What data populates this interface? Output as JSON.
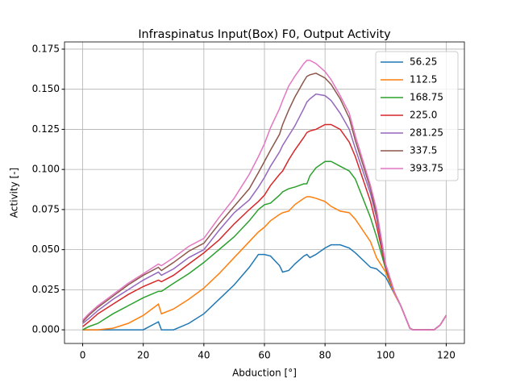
{
  "chart_data": {
    "type": "line",
    "title": "Infraspinatus Input(Box) F0, Output Activity",
    "x_label": "Abduction [°]",
    "y_label": "Activity [-]",
    "x": [
      0,
      2,
      5,
      10,
      15,
      20,
      25,
      26,
      30,
      35,
      40,
      45,
      50,
      55,
      58,
      60,
      62,
      65,
      66,
      68,
      70,
      73,
      74,
      75,
      77,
      80,
      82,
      85,
      88,
      90,
      95,
      97,
      100,
      103,
      105,
      108,
      109,
      112,
      116,
      118,
      120
    ],
    "series": [
      {
        "name": "56.25",
        "color": "#1f77b4",
        "values": [
          0,
          0,
          0,
          0,
          0,
          0,
          0.005,
          0,
          0,
          0.004,
          0.01,
          0.019,
          0.028,
          0.039,
          0.047,
          0.047,
          0.046,
          0.04,
          0.036,
          0.037,
          0.041,
          0.046,
          0.047,
          0.045,
          0.047,
          0.051,
          0.053,
          0.053,
          0.051,
          0.048,
          0.039,
          0.038,
          0.033,
          0.022,
          0.015,
          0.001,
          0,
          0,
          0,
          0.003,
          0.009
        ]
      },
      {
        "name": "112.5",
        "color": "#ff7f0e",
        "values": [
          0,
          0,
          0,
          0.001,
          0.004,
          0.009,
          0.016,
          0.01,
          0.013,
          0.019,
          0.026,
          0.035,
          0.045,
          0.055,
          0.061,
          0.064,
          0.068,
          0.072,
          0.073,
          0.074,
          0.078,
          0.082,
          0.083,
          0.083,
          0.082,
          0.08,
          0.077,
          0.074,
          0.073,
          0.069,
          0.055,
          0.045,
          0.036,
          0.022,
          0.015,
          0.001,
          0,
          0,
          0,
          0.003,
          0.009
        ]
      },
      {
        "name": "168.75",
        "color": "#2ca02c",
        "values": [
          0,
          0.002,
          0.004,
          0.01,
          0.015,
          0.02,
          0.024,
          0.024,
          0.029,
          0.035,
          0.042,
          0.05,
          0.058,
          0.068,
          0.075,
          0.078,
          0.079,
          0.084,
          0.086,
          0.088,
          0.089,
          0.091,
          0.091,
          0.096,
          0.101,
          0.105,
          0.105,
          0.102,
          0.099,
          0.094,
          0.07,
          0.058,
          0.038,
          0.023,
          0.015,
          0.001,
          0,
          0,
          0,
          0.003,
          0.009
        ]
      },
      {
        "name": "225.0",
        "color": "#d62728",
        "values": [
          0.002,
          0.005,
          0.01,
          0.016,
          0.022,
          0.027,
          0.031,
          0.03,
          0.034,
          0.041,
          0.048,
          0.056,
          0.066,
          0.075,
          0.08,
          0.084,
          0.09,
          0.097,
          0.099,
          0.106,
          0.112,
          0.12,
          0.123,
          0.124,
          0.125,
          0.128,
          0.128,
          0.125,
          0.117,
          0.108,
          0.08,
          0.065,
          0.039,
          0.023,
          0.015,
          0.001,
          0,
          0,
          0,
          0.003,
          0.009
        ]
      },
      {
        "name": "281.25",
        "color": "#9467bd",
        "values": [
          0.004,
          0.007,
          0.012,
          0.019,
          0.025,
          0.031,
          0.036,
          0.034,
          0.038,
          0.045,
          0.05,
          0.062,
          0.073,
          0.081,
          0.089,
          0.095,
          0.102,
          0.111,
          0.115,
          0.121,
          0.127,
          0.138,
          0.142,
          0.144,
          0.147,
          0.146,
          0.143,
          0.135,
          0.125,
          0.113,
          0.085,
          0.07,
          0.04,
          0.023,
          0.015,
          0.001,
          0,
          0,
          0,
          0.003,
          0.009
        ]
      },
      {
        "name": "337.5",
        "color": "#8c564b",
        "values": [
          0.005,
          0.009,
          0.014,
          0.021,
          0.028,
          0.034,
          0.039,
          0.037,
          0.042,
          0.049,
          0.054,
          0.066,
          0.077,
          0.088,
          0.098,
          0.105,
          0.112,
          0.122,
          0.128,
          0.137,
          0.145,
          0.155,
          0.158,
          0.159,
          0.16,
          0.157,
          0.153,
          0.144,
          0.132,
          0.118,
          0.088,
          0.072,
          0.041,
          0.023,
          0.015,
          0.001,
          0,
          0,
          0,
          0.003,
          0.009
        ]
      },
      {
        "name": "393.75",
        "color": "#e377c2",
        "values": [
          0.006,
          0.01,
          0.015,
          0.022,
          0.029,
          0.035,
          0.041,
          0.04,
          0.045,
          0.052,
          0.057,
          0.07,
          0.082,
          0.097,
          0.108,
          0.116,
          0.126,
          0.138,
          0.143,
          0.152,
          0.158,
          0.166,
          0.168,
          0.168,
          0.166,
          0.161,
          0.156,
          0.146,
          0.135,
          0.121,
          0.09,
          0.075,
          0.041,
          0.023,
          0.015,
          0.001,
          0,
          0,
          0,
          0.003,
          0.009
        ]
      }
    ],
    "xlim": [
      -6,
      126
    ],
    "ylim": [
      -0.0085,
      0.1795
    ],
    "xticks": [
      0,
      20,
      40,
      60,
      80,
      100,
      120
    ],
    "yticks": [
      {
        "value": 0,
        "label": "0.000"
      },
      {
        "value": 0.025,
        "label": "0.025"
      },
      {
        "value": 0.05,
        "label": "0.050"
      },
      {
        "value": 0.075,
        "label": "0.075"
      },
      {
        "value": 0.1,
        "label": "0.100"
      },
      {
        "value": 0.125,
        "label": "0.125"
      },
      {
        "value": 0.15,
        "label": "0.150"
      },
      {
        "value": 0.175,
        "label": "0.175"
      }
    ],
    "grid": true,
    "legend": "upper right"
  }
}
